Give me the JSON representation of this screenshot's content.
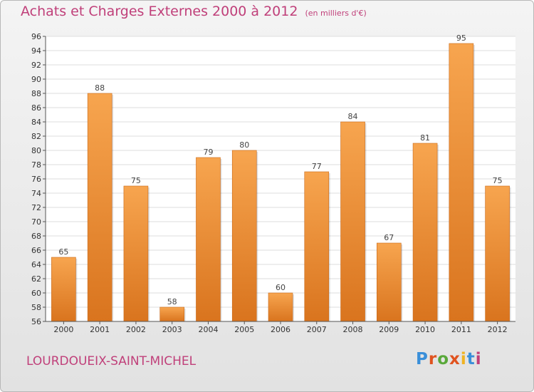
{
  "chart_data": {
    "type": "bar",
    "title": "Achats et Charges Externes 2000 à 2012",
    "subtitle": "(en milliers d'€)",
    "categories": [
      "2000",
      "2001",
      "2002",
      "2003",
      "2004",
      "2005",
      "2006",
      "2007",
      "2008",
      "2009",
      "2010",
      "2011",
      "2012"
    ],
    "values": [
      65,
      88,
      75,
      58,
      79,
      80,
      60,
      77,
      84,
      67,
      81,
      95,
      75
    ],
    "ylim": [
      56,
      96
    ],
    "yticks": [
      56,
      58,
      60,
      62,
      64,
      66,
      68,
      70,
      72,
      74,
      76,
      78,
      80,
      82,
      84,
      86,
      88,
      90,
      92,
      94,
      96
    ],
    "grid": true,
    "bar_color_top": "#f7a54f",
    "bar_color_bottom": "#d9741e",
    "xlabel": "",
    "ylabel": ""
  },
  "footer": {
    "commune": "LOURDOUEIX-SAINT-MICHEL",
    "logo_text": "Proxiti",
    "logo_colors": [
      "#3a8fd9",
      "#e0531f",
      "#59a83a",
      "#e0531f",
      "#f0b323",
      "#3a8fd9",
      "#c0407a"
    ]
  }
}
